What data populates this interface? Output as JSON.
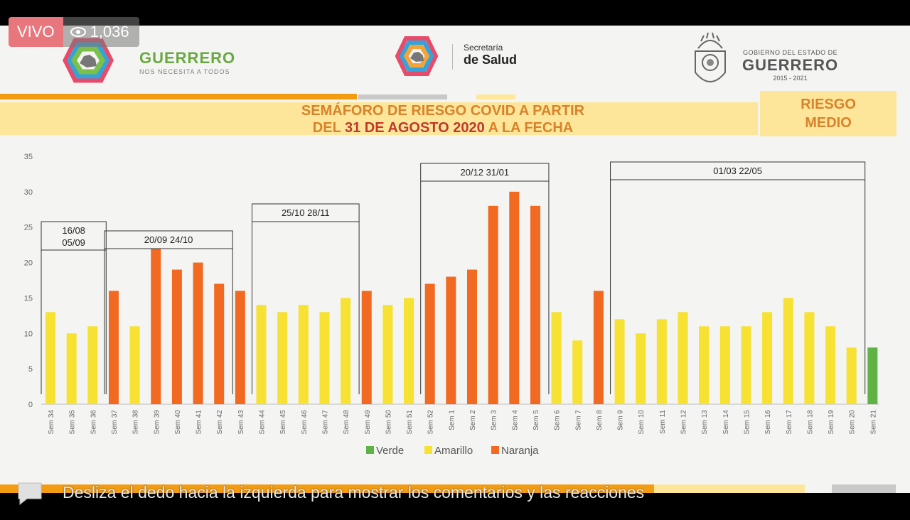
{
  "live": {
    "badge": "VIVO",
    "viewers": "1,036"
  },
  "header": {
    "brand_title": "GUERRERO",
    "brand_sub": "NOS NECESITA A TODOS",
    "salud_small": "Secretaría",
    "salud_big": "de Salud",
    "gob_small": "GOBIERNO DEL ESTADO DE",
    "gob_big": "GUERRERO",
    "gob_years": "2015 - 2021"
  },
  "title": {
    "line1": "SEMÁFORO DE RIESGO COVID A PARTIR",
    "line2_pre": "DEL ",
    "line2_hl": "31 DE AGOSTO 2020",
    "line2_post": " A LA FECHA"
  },
  "risk": {
    "line1": "RIESGO",
    "line2": "MEDIO"
  },
  "chart_data": {
    "type": "bar",
    "categories": [
      "Sem 34",
      "Sem 35",
      "Sem 36",
      "Sem 37",
      "Sem 38",
      "Sem 39",
      "Sem 40",
      "Sem 41",
      "Sem 42",
      "Sem 43",
      "Sem 44",
      "Sem 45",
      "Sem 46",
      "Sem 47",
      "Sem 48",
      "Sem 49",
      "Sem 50",
      "Sem 51",
      "Sem 52",
      "Sem 1",
      "Sem 2",
      "Sem 3",
      "Sem 4",
      "Sem 5",
      "Sem 6",
      "Sem 7",
      "Sem 8",
      "Sem 9",
      "Sem 10",
      "Sem 11",
      "Sem 12",
      "Sem 13",
      "Sem 14",
      "Sem 15",
      "Sem 16",
      "Sem 17",
      "Sem 18",
      "Sem 19",
      "Sem 20",
      "Sem 21"
    ],
    "values": [
      13,
      10,
      11,
      16,
      11,
      22,
      19,
      20,
      17,
      16,
      14,
      13,
      14,
      13,
      15,
      16,
      14,
      15,
      17,
      18,
      19,
      28,
      30,
      28,
      13,
      9,
      16,
      12,
      10,
      12,
      13,
      11,
      11,
      11,
      13,
      15,
      13,
      11,
      8,
      8
    ],
    "status": [
      "Amarillo",
      "Amarillo",
      "Amarillo",
      "Naranja",
      "Amarillo",
      "Naranja",
      "Naranja",
      "Naranja",
      "Naranja",
      "Naranja",
      "Amarillo",
      "Amarillo",
      "Amarillo",
      "Amarillo",
      "Amarillo",
      "Naranja",
      "Amarillo",
      "Amarillo",
      "Naranja",
      "Naranja",
      "Naranja",
      "Naranja",
      "Naranja",
      "Naranja",
      "Amarillo",
      "Amarillo",
      "Naranja",
      "Amarillo",
      "Amarillo",
      "Amarillo",
      "Amarillo",
      "Amarillo",
      "Amarillo",
      "Amarillo",
      "Amarillo",
      "Amarillo",
      "Amarillo",
      "Amarillo",
      "Amarillo",
      "Verde"
    ],
    "ylim": [
      0,
      35
    ],
    "yticks": [
      0,
      5,
      10,
      15,
      20,
      25,
      30,
      35
    ],
    "colors": {
      "Verde": "#5fb246",
      "Amarillo": "#f7e132",
      "Naranja": "#f26a22"
    },
    "legend": [
      "Verde",
      "Amarillo",
      "Naranja"
    ],
    "legend_position": "bottom",
    "periods": [
      {
        "line1": "16/08",
        "line2": "05/09",
        "from": 0,
        "to": 2
      },
      {
        "line1": "20/09  24/10",
        "from": 3,
        "to": 8
      },
      {
        "line1": "25/10  28/11",
        "from": 10,
        "to": 14
      },
      {
        "line1": "20/12  31/01",
        "from": 18,
        "to": 23
      },
      {
        "line1": "01/03  22/05",
        "from": 27,
        "to": 38
      }
    ]
  },
  "footer": {
    "swipe_text": "Desliza el dedo hacia la izquierda para mostrar los comentarios y las reacciones"
  }
}
